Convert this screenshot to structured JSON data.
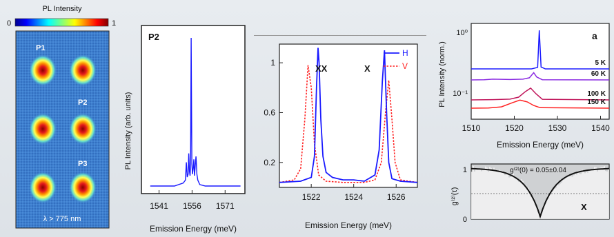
{
  "chart_data": [
    {
      "id": "map",
      "type": "heatmap",
      "colorbar_title": "PL Intensity",
      "colorbar_range": [
        0,
        1
      ],
      "colorbar_tick_labels": [
        "0",
        "1"
      ],
      "spots": [
        {
          "label": "P1",
          "col": 1,
          "row": 1
        },
        {
          "col": 2,
          "row": 1
        },
        {
          "label": "P2",
          "col": 2,
          "row": 2
        },
        {
          "col": 1,
          "row": 2
        },
        {
          "label": "P3",
          "col": 2,
          "row": 3
        },
        {
          "col": 1,
          "row": 3
        }
      ],
      "annotation": "λ > 775 nm"
    },
    {
      "id": "p2",
      "type": "line",
      "label": "P2",
      "xlabel": "Emission Energy (meV)",
      "ylabel": "PL Intensity (arb. units)",
      "xlim": [
        1533,
        1580
      ],
      "ylim": [
        0,
        1.07
      ],
      "xticks": [
        1541,
        1556,
        1571
      ],
      "x": [
        1537,
        1548,
        1552,
        1553.0,
        1553.4,
        1553.8,
        1554.2,
        1554.5,
        1554.8,
        1555.1,
        1555.3,
        1555.6,
        1555.9,
        1556.2,
        1556.5,
        1556.8,
        1557.1,
        1557.4,
        1557.8,
        1558.2,
        1558.6,
        1559.5,
        1562,
        1566,
        1578
      ],
      "y": [
        0.0,
        0.0,
        0.02,
        0.04,
        0.16,
        0.06,
        0.08,
        0.22,
        0.1,
        0.07,
        0.14,
        1.0,
        0.15,
        0.08,
        0.12,
        0.18,
        0.07,
        0.13,
        0.2,
        0.08,
        0.04,
        0.01,
        0.0,
        0.0,
        0.0
      ],
      "color": "#1a1aff"
    },
    {
      "id": "pol",
      "type": "line",
      "xlabel": "Emission Energy (meV)",
      "xlim": [
        1520.5,
        1527
      ],
      "ylim": [
        0,
        1.15
      ],
      "xticks": [
        1522,
        1524,
        1526
      ],
      "yticks": [
        0.2,
        0.6,
        1
      ],
      "ytick_labels": [
        "0.2",
        "0.6",
        "1"
      ],
      "annotations": [
        "XX",
        "X"
      ],
      "series": [
        {
          "name": "H",
          "color": "#1a1aff",
          "x": [
            1520.5,
            1521.5,
            1522.0,
            1522.15,
            1522.25,
            1522.32,
            1522.37,
            1522.45,
            1522.55,
            1522.7,
            1523.0,
            1523.5,
            1524.0,
            1524.5,
            1525.0,
            1525.2,
            1525.35,
            1525.45,
            1525.55,
            1525.65,
            1525.8,
            1526.2,
            1527
          ],
          "y": [
            0.04,
            0.05,
            0.08,
            0.25,
            0.8,
            1.12,
            1.0,
            0.55,
            0.25,
            0.12,
            0.08,
            0.06,
            0.06,
            0.05,
            0.1,
            0.3,
            0.85,
            1.1,
            0.6,
            0.2,
            0.07,
            0.05,
            0.04
          ]
        },
        {
          "name": "V",
          "color": "#ff2020",
          "x": [
            1520.5,
            1521.2,
            1521.5,
            1521.7,
            1521.85,
            1522.0,
            1522.15,
            1522.35,
            1522.7,
            1523.5,
            1524.5,
            1525.0,
            1525.3,
            1525.5,
            1525.65,
            1525.8,
            1525.95,
            1526.2,
            1527
          ],
          "y": [
            0.04,
            0.06,
            0.15,
            0.55,
            0.98,
            0.8,
            0.35,
            0.1,
            0.05,
            0.04,
            0.04,
            0.06,
            0.2,
            0.6,
            0.86,
            0.55,
            0.2,
            0.06,
            0.04
          ]
        }
      ]
    },
    {
      "id": "temp",
      "type": "line",
      "label": "a",
      "xlabel": "Emission Energy (meV)",
      "ylabel": "PL Intensity (norm.)",
      "yscale": "log",
      "xlim": [
        1510,
        1542
      ],
      "xticks": [
        1510,
        1520,
        1530,
        1540
      ],
      "yticks": [
        "10⁰",
        "10⁻¹"
      ],
      "series": [
        {
          "name": "5 K",
          "color": "#1a1aff",
          "x": [
            1510,
            1524,
            1525.4,
            1525.8,
            1526.2,
            1527.2,
            1542
          ],
          "y": [
            0,
            0,
            0.04,
            1.0,
            0.05,
            0,
            0
          ]
        },
        {
          "name": "60 K",
          "color": "#8a2be2",
          "x": [
            1510,
            1513,
            1515,
            1519,
            1522,
            1523.5,
            1524.5,
            1525.2,
            1526.5,
            1542
          ],
          "y": [
            0,
            0.02,
            0.08,
            0.04,
            0.08,
            0.22,
            0.75,
            0.3,
            0.02,
            0
          ]
        },
        {
          "name": "100 K",
          "color": "#c0155a",
          "x": [
            1510,
            1515,
            1519,
            1521,
            1522.5,
            1523.8,
            1525,
            1526.5,
            1542
          ],
          "y": [
            0,
            0.02,
            0.06,
            0.22,
            0.65,
            0.95,
            0.5,
            0.05,
            0
          ]
        },
        {
          "name": "150 K",
          "color": "#ff2020",
          "x": [
            1510,
            1514,
            1517,
            1519.5,
            1521.3,
            1523,
            1524.5,
            1526,
            1542
          ],
          "y": [
            0,
            0.02,
            0.15,
            0.6,
            0.9,
            0.7,
            0.3,
            0.05,
            0
          ]
        }
      ]
    },
    {
      "id": "g2",
      "type": "line",
      "ylabel": "g⁽²⁾(τ)",
      "annotation": "g⁽²⁾(0) = 0.05±0.04",
      "label": "X",
      "ylim": [
        0,
        1
      ],
      "yticks": [
        0,
        1
      ],
      "ytick_labels": [
        "0",
        "1"
      ],
      "dashed_level": 0.5,
      "fit": {
        "g0": 0.05,
        "tau": 2.2,
        "xlim": [
          -10,
          10
        ]
      }
    }
  ]
}
